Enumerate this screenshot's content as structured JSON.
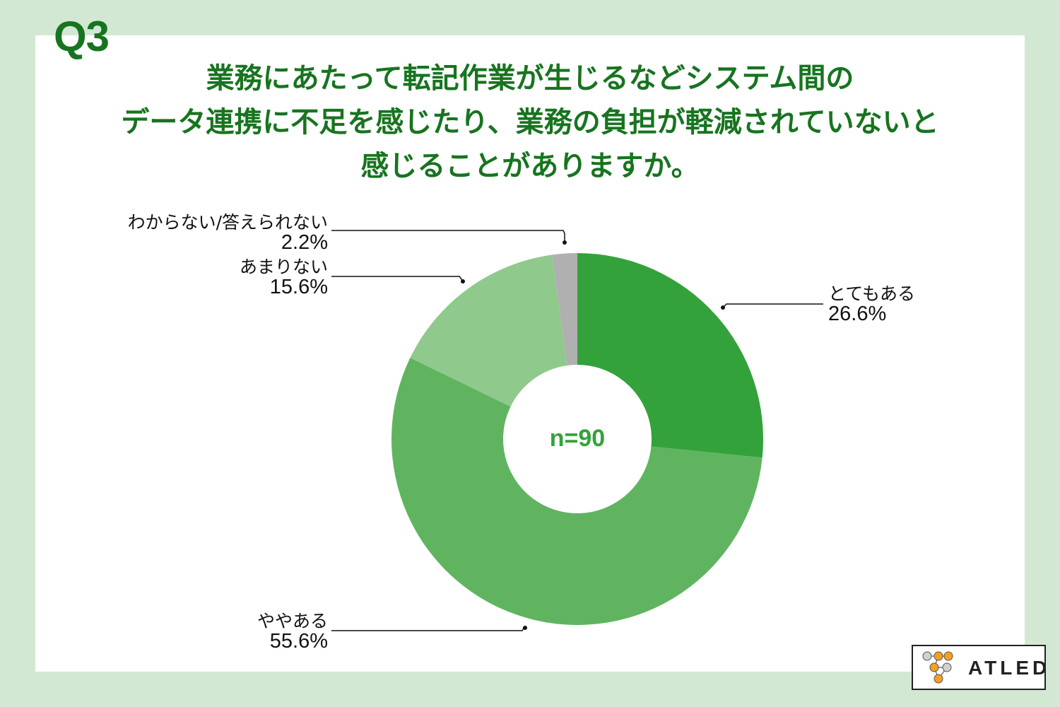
{
  "question": {
    "number": "Q3",
    "title_lines": [
      "業務にあたって転記作業が生じるなどシステム間の",
      "データ連携に不足を感じたり、業務の負担が軽減されていないと",
      "感じることがありますか。"
    ]
  },
  "center_label": "n=90",
  "logo": {
    "text": "ATLED",
    "icon": "atled-node-logo-icon"
  },
  "colors": {
    "background": "#D2E8D3",
    "panel": "#FFFFFF",
    "title": "#17741F",
    "slice_very": "#34A23A",
    "slice_somewhat": "#60B460",
    "slice_notmuch": "#8FC98B",
    "slice_unknown": "#B0B0B0"
  },
  "labels": {
    "very": {
      "name": "とてもある",
      "pct": "26.6%"
    },
    "somewhat": {
      "name": "ややある",
      "pct": "55.6%"
    },
    "notmuch": {
      "name": "あまりない",
      "pct": "15.6%"
    },
    "unknown": {
      "name": "わからない/答えられない",
      "pct": "2.2%"
    }
  },
  "chart_data": {
    "type": "pie",
    "subtype": "donut",
    "title": "業務にあたって転記作業が生じるなどシステム間のデータ連携に不足を感じたり、業務の負担が軽減されていないと感じることがありますか。",
    "center_text": "n=90",
    "categories": [
      "とてもある",
      "ややある",
      "あまりない",
      "わからない/答えられない"
    ],
    "values": [
      26.6,
      55.6,
      15.6,
      2.2
    ],
    "unit": "%",
    "colors": [
      "#34A23A",
      "#60B460",
      "#8FC98B",
      "#B0B0B0"
    ],
    "start_angle": "12 o'clock",
    "direction": "clockwise",
    "legend": "callout labels with leader lines"
  }
}
